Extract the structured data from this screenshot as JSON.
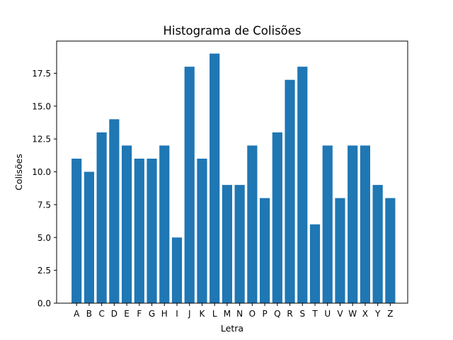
{
  "chart_data": {
    "type": "bar",
    "title": "Histograma de Colisões",
    "xlabel": "Letra",
    "ylabel": "Colisões",
    "categories": [
      "A",
      "B",
      "C",
      "D",
      "E",
      "F",
      "G",
      "H",
      "I",
      "J",
      "K",
      "L",
      "M",
      "N",
      "O",
      "P",
      "Q",
      "R",
      "S",
      "T",
      "U",
      "V",
      "W",
      "X",
      "Y",
      "Z"
    ],
    "values": [
      11,
      10,
      13,
      14,
      12,
      11,
      11,
      12,
      5,
      18,
      11,
      19,
      9,
      9,
      12,
      8,
      13,
      17,
      18,
      6,
      12,
      8,
      12,
      12,
      9,
      8
    ],
    "ylim": [
      0,
      19.95
    ],
    "yticks": [
      0.0,
      2.5,
      5.0,
      7.5,
      10.0,
      12.5,
      15.0,
      17.5
    ],
    "ytick_labels": [
      "0.0",
      "2.5",
      "5.0",
      "7.5",
      "10.0",
      "12.5",
      "15.0",
      "17.5"
    ],
    "bar_color": "#1f77b4",
    "grid": false,
    "legend": "none"
  }
}
